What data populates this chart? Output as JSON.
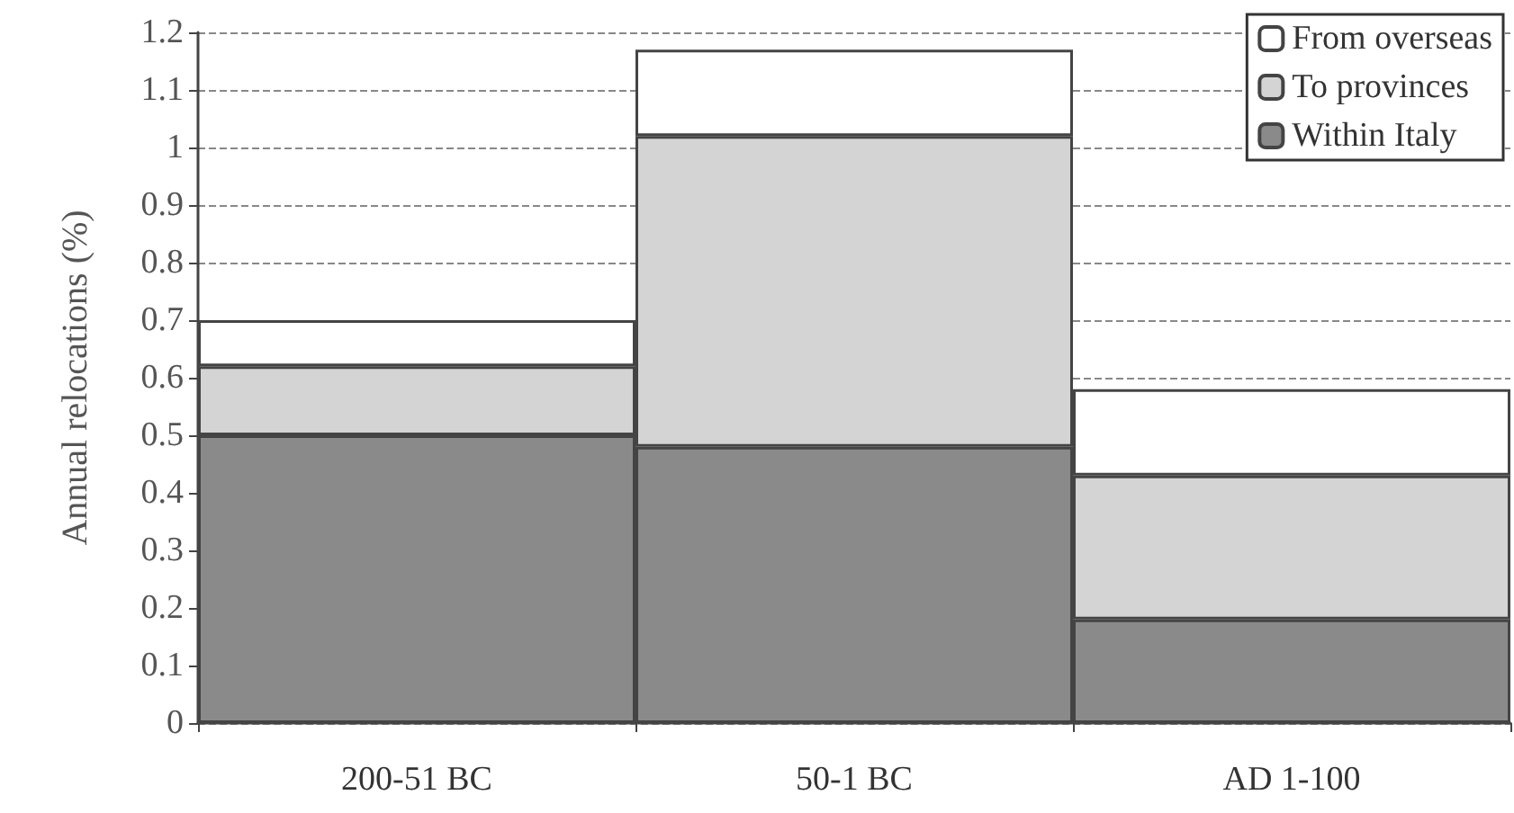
{
  "chart_data": {
    "type": "bar",
    "ylabel": "Annual relocations (%)",
    "categories": [
      "200-51 BC",
      "50-1 BC",
      "AD 1-100"
    ],
    "stacked": true,
    "series": [
      {
        "name": "Within Italy",
        "color": "#8a8a8a",
        "values": [
          0.5,
          0.48,
          0.18
        ]
      },
      {
        "name": "To provinces",
        "color": "#d4d4d4",
        "values": [
          0.12,
          0.54,
          0.25
        ]
      },
      {
        "name": "From overseas",
        "color": "#ffffff",
        "values": [
          0.08,
          0.15,
          0.15
        ]
      }
    ],
    "ylim": [
      0,
      1.2
    ],
    "yticks": [
      0,
      0.1,
      0.2,
      0.3,
      0.4,
      0.5,
      0.6,
      0.7,
      0.8,
      0.9,
      1,
      1.1,
      1.2
    ],
    "grid": "y",
    "legend": "top right"
  }
}
